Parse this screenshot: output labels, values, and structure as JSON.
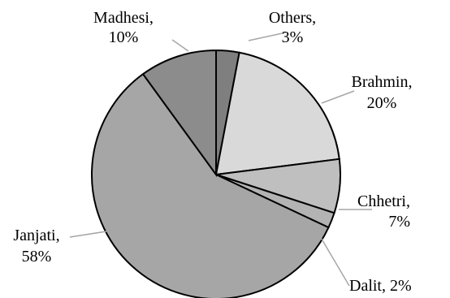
{
  "chart_data": {
    "type": "pie",
    "title": "",
    "slices": [
      {
        "label": "Others",
        "value": 3,
        "display": "3%",
        "color": "#7f7f7f"
      },
      {
        "label": "Brahmin",
        "value": 20,
        "display": "20%",
        "color": "#d9d9d9"
      },
      {
        "label": "Chhetri",
        "value": 7,
        "display": "7%",
        "color": "#bfbfbf"
      },
      {
        "label": "Dalit",
        "value": 2,
        "display": "2%",
        "color": "#b3b3b3"
      },
      {
        "label": "Janjati",
        "value": 58,
        "display": "58%",
        "color": "#a6a6a6"
      },
      {
        "label": "Madhesi",
        "value": 10,
        "display": "10%",
        "color": "#8c8c8c"
      }
    ],
    "data_labels": [
      {
        "text1": "Others,",
        "text2": "3%"
      },
      {
        "text1": "Brahmin,",
        "text2": "20%"
      },
      {
        "text1": "Chhetri,",
        "text2": "7%"
      },
      {
        "text1": "Dalit, 2%",
        "text2": ""
      },
      {
        "text1": "Janjati,",
        "text2": "58%"
      },
      {
        "text1": "Madhesi,",
        "text2": "10%"
      }
    ],
    "legend": "none"
  }
}
